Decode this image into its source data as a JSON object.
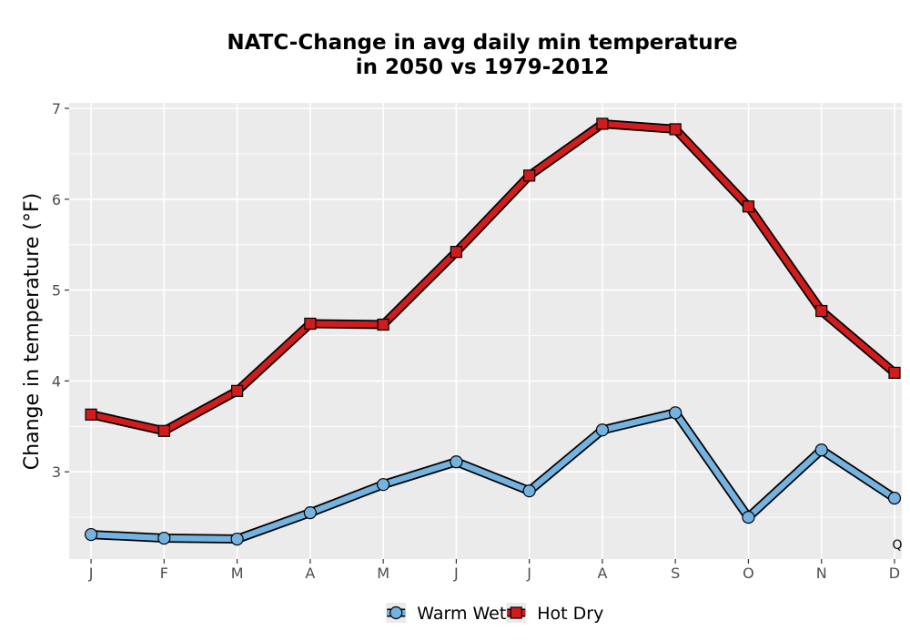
{
  "chart_data": {
    "type": "line",
    "title_line1": "NATC-Change in avg daily min temperature",
    "title_line2": "in 2050 vs 1979-2012",
    "xlabel": "",
    "ylabel": "Change in temperature (°F)",
    "categories": [
      "J",
      "F",
      "M",
      "A",
      "M",
      "J",
      "J",
      "A",
      "S",
      "O",
      "N",
      "D"
    ],
    "ylim": [
      2.04,
      7.06
    ],
    "yticks": [
      3,
      4,
      5,
      6,
      7
    ],
    "grid": true,
    "legend_position": "bottom",
    "corner_label": "Q",
    "series": [
      {
        "name": "Warm Wet",
        "marker": "circle",
        "color": "#74b3e0",
        "values": [
          2.31,
          2.27,
          2.26,
          2.55,
          2.86,
          3.11,
          2.79,
          3.46,
          3.65,
          2.5,
          3.24,
          2.71
        ]
      },
      {
        "name": "Hot Dry",
        "marker": "square",
        "color": "#d01c1c",
        "values": [
          3.63,
          3.45,
          3.89,
          4.63,
          4.62,
          5.42,
          6.26,
          6.83,
          6.77,
          5.92,
          4.77,
          4.09
        ]
      }
    ],
    "colors": {
      "panel": "#ebebeb",
      "grid": "#ffffff",
      "axis_text": "#4d4d4d",
      "outline": "#000000"
    }
  }
}
